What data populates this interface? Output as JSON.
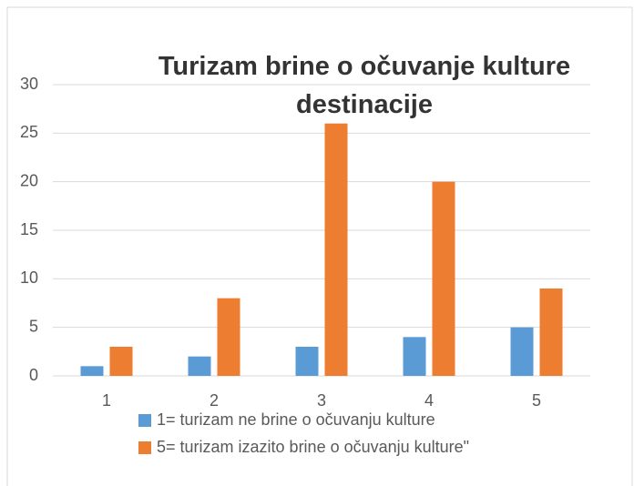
{
  "chart_data": {
    "type": "bar",
    "title": "Turizam brine o očuvanje kulture destinacije",
    "categories": [
      "1",
      "2",
      "3",
      "4",
      "5"
    ],
    "series": [
      {
        "name": "1= turizam ne brine o očuvanju kulture",
        "color": "#5b9bd5",
        "values": [
          1,
          2,
          3,
          4,
          5
        ]
      },
      {
        "name": "5= turizam izazito brine o očuvanju kulture\"",
        "color": "#ed7d31",
        "values": [
          3,
          8,
          26,
          20,
          9
        ]
      }
    ],
    "ylim": [
      0,
      30
    ],
    "yticks": [
      0,
      5,
      10,
      15,
      20,
      25,
      30
    ],
    "grid": true
  }
}
